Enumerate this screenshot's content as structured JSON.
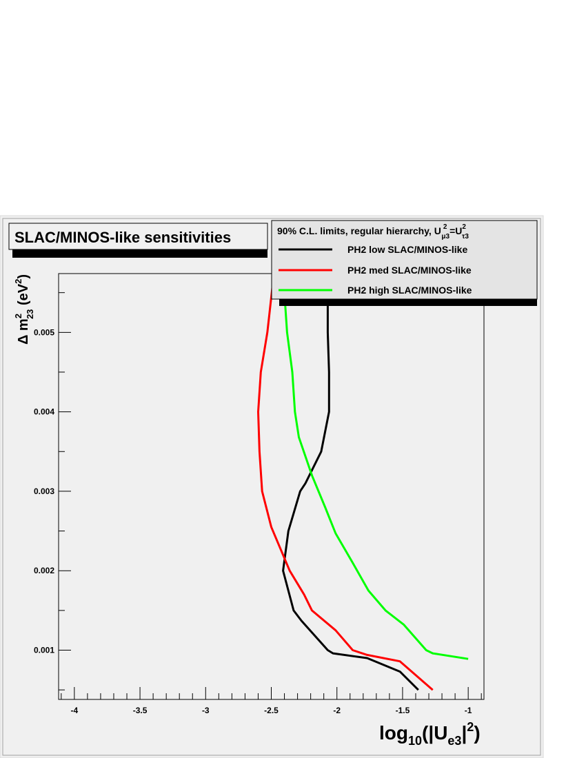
{
  "chart_data": {
    "type": "line",
    "title": "SLAC/MINOS-like sensitivities",
    "legend_header": {
      "prefix": "90% C.L. limits, regular hierarchy, U",
      "sup1": "2",
      "sub1": "μ3",
      "eq": "=U",
      "sup2": "2",
      "sub2": "τ3"
    },
    "xlabel": {
      "base": "log",
      "sub1": "10",
      "mid": "(|U",
      "sub2": "e3",
      "close": "|",
      "sup": "2",
      "end": ")"
    },
    "ylabel": {
      "prefix": "Δ m",
      "sup": "2",
      "sub": "23",
      "unit": " (eV",
      "unit_sup": "2",
      "unit_end": ")"
    },
    "xlim": [
      -4.12,
      -0.88
    ],
    "ylim": [
      0.00038,
      0.00574
    ],
    "x_ticks": [
      {
        "v": -4,
        "label": "-4"
      },
      {
        "v": -3.5,
        "label": "-3.5"
      },
      {
        "v": -3,
        "label": "-3"
      },
      {
        "v": -2.5,
        "label": "-2.5"
      },
      {
        "v": -2,
        "label": "-2"
      },
      {
        "v": -1.5,
        "label": "-1.5"
      },
      {
        "v": -1,
        "label": "-1"
      }
    ],
    "y_ticks": [
      {
        "v": 0.001,
        "label": "0.001"
      },
      {
        "v": 0.002,
        "label": "0.002"
      },
      {
        "v": 0.003,
        "label": "0.003"
      },
      {
        "v": 0.004,
        "label": "0.004"
      },
      {
        "v": 0.005,
        "label": "0.005"
      }
    ],
    "legend_position": "top-right",
    "grid": false,
    "series": [
      {
        "name": "PH2 low SLAC/MINOS-like",
        "color": "#000000",
        "points": [
          [
            -2.07,
            0.00574
          ],
          [
            -2.07,
            0.0052
          ],
          [
            -2.07,
            0.005
          ],
          [
            -2.06,
            0.0045
          ],
          [
            -2.06,
            0.004
          ],
          [
            -2.12,
            0.0035
          ],
          [
            -2.24,
            0.0031
          ],
          [
            -2.28,
            0.003
          ],
          [
            -2.37,
            0.0025
          ],
          [
            -2.41,
            0.002
          ],
          [
            -2.33,
            0.0015
          ],
          [
            -2.27,
            0.00137
          ],
          [
            -2.07,
            0.001
          ],
          [
            -2.03,
            0.00096
          ],
          [
            -1.77,
            0.0009
          ],
          [
            -1.52,
            0.00073
          ],
          [
            -1.38,
            0.0005
          ]
        ]
      },
      {
        "name": "PH2 med SLAC/MINOS-like",
        "color": "#ff0000",
        "points": [
          [
            -2.48,
            0.00574
          ],
          [
            -2.53,
            0.005
          ],
          [
            -2.58,
            0.0045
          ],
          [
            -2.6,
            0.004
          ],
          [
            -2.59,
            0.0035
          ],
          [
            -2.57,
            0.003
          ],
          [
            -2.5,
            0.00255
          ],
          [
            -2.36,
            0.002
          ],
          [
            -2.25,
            0.0017
          ],
          [
            -2.19,
            0.0015
          ],
          [
            -2.01,
            0.00125
          ],
          [
            -1.88,
            0.001
          ],
          [
            -1.77,
            0.00094
          ],
          [
            -1.52,
            0.00086
          ],
          [
            -1.27,
            0.0005
          ]
        ]
      },
      {
        "name": "PH2 high SLAC/MINOS-like",
        "color": "#00ff00",
        "points": [
          [
            -2.41,
            0.00574
          ],
          [
            -2.38,
            0.005
          ],
          [
            -2.34,
            0.0045
          ],
          [
            -2.32,
            0.004
          ],
          [
            -2.29,
            0.00368
          ],
          [
            -2.19,
            0.0032
          ],
          [
            -2.09,
            0.0028
          ],
          [
            -2.01,
            0.00247
          ],
          [
            -1.88,
            0.0021
          ],
          [
            -1.76,
            0.00175
          ],
          [
            -1.63,
            0.0015
          ],
          [
            -1.49,
            0.00132
          ],
          [
            -1.32,
            0.001
          ],
          [
            -1.27,
            0.00096
          ],
          [
            -1.0,
            0.00089
          ]
        ]
      }
    ]
  }
}
